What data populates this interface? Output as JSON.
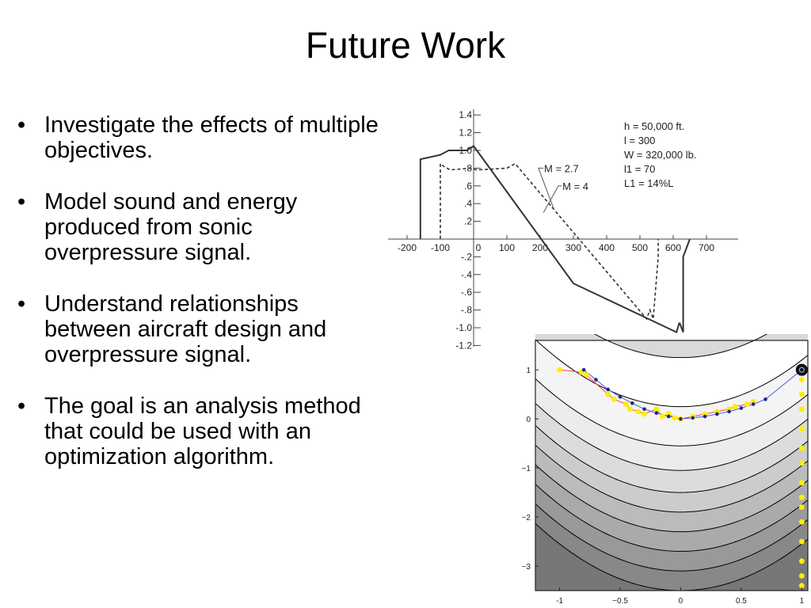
{
  "slide": {
    "title": "Future Work",
    "bullets": [
      "Investigate the effects of multiple objectives.",
      "Model sound and energy produced from sonic overpressure signal.",
      "Understand relationships between aircraft design and overpressure signal.",
      "The goal is an analysis method that could be used with an optimization algorithm."
    ],
    "bullet_glyph": "•"
  },
  "chart_data": [
    {
      "type": "line",
      "title": "",
      "x_ticks": [
        "-200",
        "-100",
        "0",
        "100",
        "200",
        "300",
        "400",
        "500",
        "600",
        "700"
      ],
      "y_ticks": [
        "1.4",
        "1.2",
        "1.0",
        ".8",
        ".6",
        ".4",
        ".2",
        "-.2",
        "-.4",
        "-.6",
        "-.8",
        "-1.0",
        "-1.2"
      ],
      "xlim": [
        -250,
        800
      ],
      "ylim": [
        -1.25,
        1.45
      ],
      "annotations": [
        "h = 50,000 ft.",
        "l = 300",
        "W = 320,000 lb.",
        "l1 = 70",
        "L1 = 14%L"
      ],
      "series": [
        {
          "name": "M = 2.7",
          "style": "dashed",
          "x": [
            -100,
            -100,
            -90,
            -70,
            -10,
            10,
            100,
            125,
            520,
            530,
            530,
            540,
            540,
            555,
            555
          ],
          "y": [
            0,
            0.85,
            0.82,
            0.78,
            0.8,
            0.78,
            0.8,
            0.85,
            -0.9,
            -0.8,
            -0.8,
            -0.9,
            -0.9,
            -0.2,
            0
          ]
        },
        {
          "name": "M = 4",
          "style": "solid",
          "x": [
            -160,
            -160,
            -100,
            -75,
            -20,
            0,
            300,
            300,
            610,
            618,
            620,
            630,
            630,
            650
          ],
          "y": [
            0,
            0.9,
            0.95,
            1.0,
            1.0,
            1.05,
            -0.5,
            -0.5,
            -1.05,
            -0.95,
            -0.95,
            -1.05,
            -0.2,
            0
          ]
        }
      ]
    },
    {
      "type": "scatter",
      "title": "",
      "x_ticks": [
        "-1",
        "−0.5",
        "0",
        "0.5",
        "1"
      ],
      "y_ticks": [
        "1",
        "0",
        "−1",
        "−2",
        "−3"
      ],
      "xlim": [
        -1.2,
        1.05
      ],
      "ylim": [
        -3.5,
        1.6
      ],
      "colors": {
        "points_yellow": "#ffee00",
        "points_blue": "#1a2a8a",
        "line_red": "#ff4040",
        "line_blue": "#4a5adc",
        "contour": "#000000"
      },
      "series": [
        {
          "name": "",
          "marker": "yellow",
          "x": [
            -1.0,
            -0.82,
            -0.78,
            -0.6,
            -0.55,
            -0.45,
            -0.42,
            -0.35,
            -0.3,
            -0.2,
            -0.15,
            -0.1,
            -0.05,
            0.0,
            0.1,
            0.2,
            0.3,
            0.4,
            0.45,
            0.55,
            0.6,
            1.0,
            1.0,
            1.0,
            1.0,
            1.0,
            1.0,
            1.0,
            1.0,
            1.0,
            1.0,
            1.0,
            1.0,
            1.0,
            1.0,
            1.0
          ],
          "y": [
            1.0,
            0.95,
            0.9,
            0.5,
            0.4,
            0.3,
            0.2,
            0.15,
            0.1,
            0.2,
            0.05,
            0.1,
            0.02,
            0.0,
            0.05,
            0.1,
            0.15,
            0.2,
            0.25,
            0.3,
            0.35,
            1.0,
            0.8,
            0.5,
            0.2,
            -0.2,
            -0.6,
            -0.9,
            -1.3,
            -1.6,
            -1.8,
            -2.1,
            -2.5,
            -2.9,
            -3.2,
            -3.4
          ]
        },
        {
          "name": "",
          "marker": "blue",
          "x": [
            -0.8,
            -0.7,
            -0.6,
            -0.5,
            -0.4,
            -0.3,
            -0.2,
            -0.1,
            0.0,
            0.1,
            0.2,
            0.3,
            0.4,
            0.5,
            0.6,
            0.7,
            1.0
          ],
          "y": [
            1.0,
            0.8,
            0.6,
            0.45,
            0.32,
            0.2,
            0.12,
            0.05,
            0.0,
            0.02,
            0.05,
            0.1,
            0.15,
            0.22,
            0.3,
            0.4,
            1.0
          ]
        }
      ]
    }
  ]
}
